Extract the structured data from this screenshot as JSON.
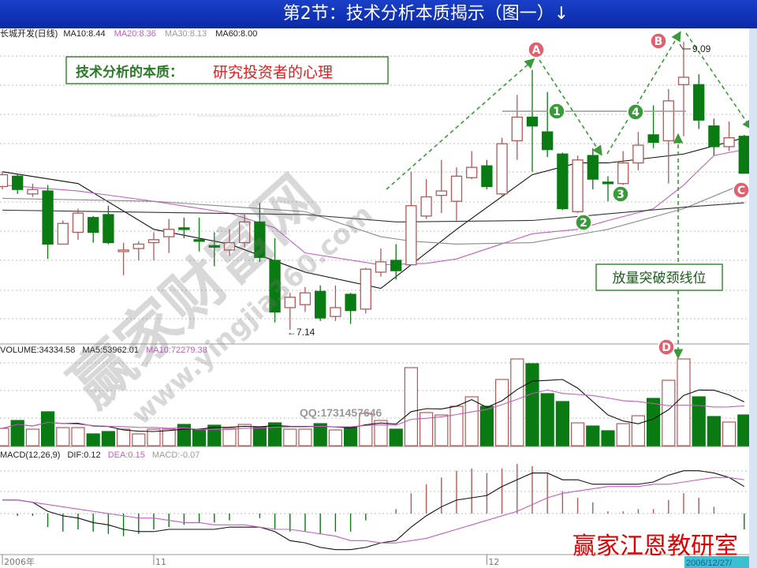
{
  "title": "第2节：技术分析本质揭示（图一）↓",
  "legend_price": {
    "name": "长城开发(日线)",
    "ma10": "MA10:8.44",
    "ma20": "MA20:8.36",
    "ma30": "MA30:8.13",
    "ma60": "MA60:8.00"
  },
  "legend_volume": {
    "vol": "VOLUME:34334.58",
    "ma5": "MA5:53962.01",
    "ma10": "MA10:72279.38"
  },
  "legend_macd": {
    "name": "MACD(12,26,9)",
    "dif": "DIF:0.12",
    "dea": "DEA:0.15",
    "macd": "MACD:-0.07"
  },
  "annotations": {
    "box_label": "技术分析的本质：",
    "box_value": "研究投资者的心理",
    "breakout": "放量突破颈线位",
    "high_label": "9.09",
    "low_label": "←7.14",
    "A": "A",
    "B": "B",
    "C": "C",
    "D": "D",
    "n1": "1",
    "n2": "2",
    "n3": "3",
    "n4": "4"
  },
  "watermark": {
    "site": "赢家财富网",
    "url": "www.yingjia360.com",
    "qq": "QQ:1731457646"
  },
  "footer_brand": "赢家江恩教研室",
  "x_axis": {
    "labels": [
      {
        "text": "2006年",
        "i": 0
      },
      {
        "text": "11",
        "i": 10
      },
      {
        "text": "12",
        "i": 32
      }
    ],
    "cursor_date": "2006/12/27/"
  },
  "colors": {
    "up": "#b05a5a",
    "down": "#0a7a12",
    "ma10": "#111111",
    "ma20": "#c060c0",
    "ma30": "#8a8a8a",
    "ma60": "#333333",
    "annot_green": "#3a9a3a",
    "annot_red": "#e06070",
    "title_bg": "#0b2aa8"
  },
  "chart_data": [
    {
      "type": "candlestick",
      "panel": "price",
      "ylim": [
        7.14,
        9.09
      ],
      "grid": true,
      "candles": [
        [
          8.11,
          8.21,
          8.09,
          8.19
        ],
        [
          8.18,
          8.19,
          8.06,
          8.09
        ],
        [
          8.06,
          8.13,
          8.04,
          8.09
        ],
        [
          8.08,
          8.12,
          7.62,
          7.72
        ],
        [
          7.72,
          7.88,
          7.72,
          7.86
        ],
        [
          7.8,
          7.96,
          7.75,
          7.93
        ],
        [
          7.9,
          7.91,
          7.73,
          7.8
        ],
        [
          7.92,
          7.98,
          7.72,
          7.73
        ],
        [
          7.67,
          7.73,
          7.51,
          7.68
        ],
        [
          7.69,
          7.74,
          7.61,
          7.72
        ],
        [
          7.73,
          7.8,
          7.61,
          7.75
        ],
        [
          7.77,
          7.89,
          7.66,
          7.82
        ],
        [
          7.83,
          7.9,
          7.76,
          7.82
        ],
        [
          7.75,
          7.9,
          7.67,
          7.74
        ],
        [
          7.71,
          7.8,
          7.57,
          7.7
        ],
        [
          7.68,
          7.82,
          7.64,
          7.73
        ],
        [
          7.73,
          7.92,
          7.7,
          7.87
        ],
        [
          7.87,
          8.0,
          7.6,
          7.63
        ],
        [
          7.61,
          7.76,
          7.19,
          7.26
        ],
        [
          7.29,
          7.39,
          7.14,
          7.36
        ],
        [
          7.31,
          7.43,
          7.26,
          7.39
        ],
        [
          7.4,
          7.44,
          7.2,
          7.22
        ],
        [
          7.23,
          7.44,
          7.2,
          7.29
        ],
        [
          7.38,
          7.39,
          7.18,
          7.27
        ],
        [
          7.28,
          7.56,
          7.25,
          7.55
        ],
        [
          7.53,
          7.69,
          7.5,
          7.6
        ],
        [
          7.61,
          7.72,
          7.48,
          7.54
        ],
        [
          7.58,
          8.21,
          7.58,
          7.98
        ],
        [
          7.91,
          8.16,
          7.89,
          8.04
        ],
        [
          8.05,
          8.29,
          7.93,
          8.08
        ],
        [
          8.01,
          8.24,
          7.88,
          8.18
        ],
        [
          8.17,
          8.35,
          8.16,
          8.24
        ],
        [
          8.25,
          8.29,
          8.09,
          8.11
        ],
        [
          8.06,
          8.44,
          8.05,
          8.4
        ],
        [
          8.42,
          8.73,
          8.29,
          8.58
        ],
        [
          8.58,
          8.9,
          8.21,
          8.52
        ],
        [
          8.48,
          8.75,
          8.31,
          8.36
        ],
        [
          8.33,
          8.34,
          7.95,
          7.96
        ],
        [
          7.94,
          8.32,
          7.93,
          8.29
        ],
        [
          8.32,
          8.37,
          8.09,
          8.16
        ],
        [
          8.14,
          8.18,
          8.01,
          8.13
        ],
        [
          8.13,
          8.35,
          8.12,
          8.27
        ],
        [
          8.27,
          8.48,
          8.22,
          8.39
        ],
        [
          8.46,
          8.66,
          8.37,
          8.41
        ],
        [
          8.42,
          8.77,
          8.13,
          8.69
        ],
        [
          8.8,
          9.09,
          8.45,
          8.85
        ],
        [
          8.8,
          8.87,
          8.5,
          8.56
        ],
        [
          8.52,
          8.57,
          8.32,
          8.38
        ],
        [
          8.38,
          8.55,
          8.35,
          8.44
        ],
        [
          8.45,
          8.46,
          8.2,
          8.2
        ]
      ],
      "candle_fields": [
        "open",
        "high",
        "low",
        "close"
      ],
      "series": [
        {
          "name": "MA10",
          "points": [
            [
              0,
              8.21
            ],
            [
              5,
              8.13
            ],
            [
              10,
              7.82
            ],
            [
              15,
              7.72
            ],
            [
              20,
              7.53
            ],
            [
              25,
              7.42
            ],
            [
              30,
              7.82
            ],
            [
              35,
              8.19
            ],
            [
              38,
              8.27
            ],
            [
              40,
              8.27
            ],
            [
              45,
              8.33
            ],
            [
              49,
              8.44
            ]
          ]
        },
        {
          "name": "MA20",
          "points": [
            [
              0,
              8.12
            ],
            [
              5,
              8.08
            ],
            [
              10,
              8.01
            ],
            [
              15,
              7.93
            ],
            [
              18,
              7.83
            ],
            [
              20,
              7.66
            ],
            [
              25,
              7.58
            ],
            [
              28,
              7.59
            ],
            [
              30,
              7.62
            ],
            [
              35,
              7.79
            ],
            [
              38,
              7.82
            ],
            [
              40,
              7.88
            ],
            [
              43,
              7.96
            ],
            [
              45,
              8.12
            ],
            [
              47,
              8.32
            ],
            [
              49,
              8.36
            ]
          ]
        },
        {
          "name": "MA30",
          "points": [
            [
              0,
              8.03
            ],
            [
              10,
              8.01
            ],
            [
              20,
              7.94
            ],
            [
              25,
              7.77
            ],
            [
              27,
              7.74
            ],
            [
              30,
              7.72
            ],
            [
              35,
              7.73
            ],
            [
              40,
              7.82
            ],
            [
              45,
              7.96
            ],
            [
              49,
              8.13
            ]
          ]
        },
        {
          "name": "MA60",
          "points": [
            [
              0,
              7.95
            ],
            [
              20,
              7.92
            ],
            [
              26,
              7.87
            ],
            [
              35,
              7.88
            ],
            [
              45,
              7.97
            ],
            [
              49,
              8.0
            ]
          ]
        }
      ],
      "annotated_high": 9.09,
      "annotated_low": 7.14,
      "neckline": 8.62
    },
    {
      "type": "bar",
      "panel": "volume",
      "values": [
        19360,
        28160,
        18480,
        37840,
        20240,
        20240,
        13200,
        15840,
        18480,
        13200,
        18480,
        18480,
        23760,
        18480,
        22880,
        19360,
        23760,
        21120,
        25520,
        18480,
        18480,
        24640,
        17600,
        20240,
        36080,
        28160,
        18480,
        87120,
        36960,
        34320,
        44000,
        54560,
        44000,
        73920,
        96800,
        91520,
        58080,
        49280,
        25520,
        22000,
        16720,
        24640,
        33440,
        52800,
        73040,
        96800,
        54560,
        32560,
        26400,
        34334.58
      ],
      "moving_averages": [
        "MA5",
        "MA10"
      ],
      "ylim": [
        0,
        110000
      ]
    },
    {
      "type": "bar",
      "panel": "macd",
      "histogram": [
        0,
        -0.01,
        -0.01,
        -0.06,
        -0.08,
        -0.07,
        -0.08,
        -0.09,
        -0.1,
        -0.09,
        -0.07,
        -0.06,
        -0.05,
        -0.04,
        -0.04,
        -0.03,
        0,
        -0.02,
        -0.07,
        -0.08,
        -0.08,
        -0.09,
        -0.08,
        -0.08,
        -0.03,
        0,
        0.02,
        0.09,
        0.13,
        0.16,
        0.19,
        0.2,
        0.18,
        0.2,
        0.22,
        0.21,
        0.18,
        0.1,
        0.07,
        0.05,
        0.01,
        0.01,
        0.02,
        0.02,
        0.06,
        0.09,
        0.07,
        0.03,
        0,
        -0.07
      ],
      "dif": [
        0.06,
        0.06,
        0.05,
        0.01,
        -0.01,
        -0.02,
        -0.04,
        -0.05,
        -0.07,
        -0.08,
        -0.08,
        -0.07,
        -0.07,
        -0.07,
        -0.07,
        -0.06,
        -0.06,
        -0.06,
        -0.08,
        -0.12,
        -0.13,
        -0.15,
        -0.16,
        -0.16,
        -0.15,
        -0.13,
        -0.12,
        -0.06,
        -0.01,
        0.03,
        0.06,
        0.07,
        0.08,
        0.12,
        0.15,
        0.18,
        0.18,
        0.15,
        0.15,
        0.13,
        0.13,
        0.13,
        0.13,
        0.14,
        0.17,
        0.19,
        0.19,
        0.18,
        0.16,
        0.12
      ],
      "dea": [
        0.06,
        0.06,
        0.05,
        0.04,
        0.03,
        0.02,
        0.01,
        0,
        -0.01,
        -0.02,
        -0.02,
        -0.03,
        -0.04,
        -0.04,
        -0.05,
        -0.05,
        -0.05,
        -0.06,
        -0.07,
        -0.07,
        -0.08,
        -0.09,
        -0.1,
        -0.12,
        -0.12,
        -0.13,
        -0.13,
        -0.12,
        -0.11,
        -0.09,
        -0.07,
        -0.05,
        -0.03,
        -0.01,
        0.01,
        0.04,
        0.07,
        0.09,
        0.1,
        0.11,
        0.12,
        0.12,
        0.12,
        0.13,
        0.13,
        0.14,
        0.15,
        0.16,
        0.16,
        0.15
      ]
    }
  ]
}
